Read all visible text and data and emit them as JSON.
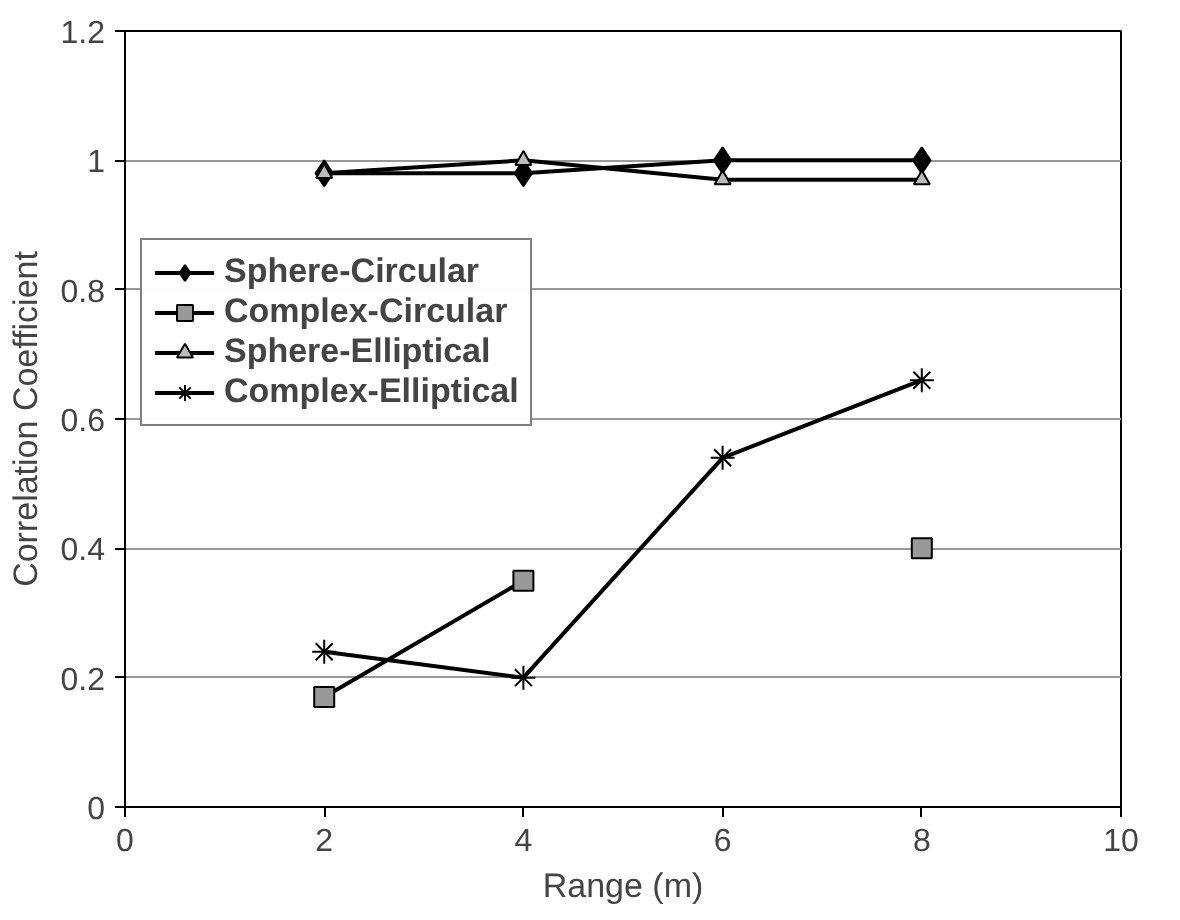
{
  "chart_data": {
    "type": "line",
    "xlabel": "Range (m)",
    "ylabel": "Correlation Coefficient",
    "x": [
      2,
      4,
      6,
      8
    ],
    "series": [
      {
        "name": "Sphere-Circular",
        "color": "#000000",
        "marker": "diamond",
        "values": [
          0.98,
          0.98,
          1.0,
          1.0
        ]
      },
      {
        "name": "Complex-Circular",
        "color": "#000000",
        "marker": "square",
        "values": [
          0.17,
          0.35,
          null,
          0.4
        ]
      },
      {
        "name": "Sphere-Elliptical",
        "color": "#000000",
        "marker": "triangle",
        "values": [
          0.98,
          1.0,
          0.97,
          0.97
        ]
      },
      {
        "name": "Complex-Elliptical",
        "color": "#000000",
        "marker": "cross",
        "values": [
          0.24,
          0.2,
          0.54,
          0.66
        ]
      }
    ],
    "xlim": [
      0,
      10
    ],
    "xticks": [
      0,
      2,
      4,
      6,
      8,
      10
    ],
    "ylim": [
      0,
      1.2
    ],
    "yticks": [
      0,
      0.2,
      0.4,
      0.6,
      0.8,
      1,
      1.2
    ],
    "grid": "y",
    "legend": "left",
    "line_style": "solid"
  }
}
